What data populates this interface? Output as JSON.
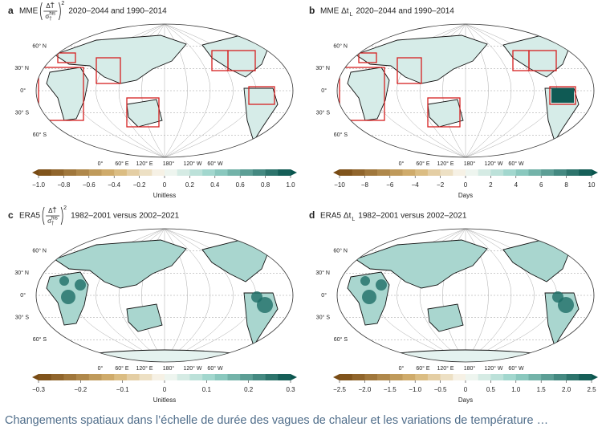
{
  "panels": [
    {
      "letter": "a",
      "title": {
        "prefix": "MME",
        "numerator": "ΔT̂",
        "denominator": "σ",
        "denominator_sup": "his",
        "denominator_sub": "T̂",
        "power": "2",
        "suffix": "2020–2044 and 1990–2014"
      },
      "colorbar_ticks": [
        "−1.0",
        "−0.8",
        "−0.6",
        "−0.4",
        "−0.2",
        "0",
        "0.2",
        "0.4",
        "0.6",
        "0.8",
        "1.0"
      ],
      "colorbar_label": "Unitless"
    },
    {
      "letter": "b",
      "title": {
        "prefix": "MME Δt",
        "subscript": "L",
        "suffix": "2020–2044 and 1990–2014"
      },
      "colorbar_ticks": [
        "−10",
        "−8",
        "−6",
        "−4",
        "−2",
        "0",
        "2",
        "4",
        "6",
        "8",
        "10"
      ],
      "colorbar_label": "Days"
    },
    {
      "letter": "c",
      "title": {
        "prefix": "ERA5",
        "numerator": "ΔT̂",
        "denominator": "σ",
        "denominator_sup": "his",
        "denominator_sub": "T̂",
        "power": "2",
        "suffix": "1982–2001 versus 2002–2021"
      },
      "colorbar_ticks": [
        "−0.3",
        "−0.2",
        "−0.1",
        "0",
        "0.1",
        "0.2",
        "0.3"
      ],
      "colorbar_label": "Unitless"
    },
    {
      "letter": "d",
      "title": {
        "prefix": "ERA5 Δt",
        "subscript": "L",
        "suffix": "1982–2001 versus 2002–2021"
      },
      "colorbar_ticks": [
        "−2.5",
        "−2.0",
        "−1.5",
        "−1.0",
        "−0.5",
        "0",
        "0.5",
        "1.0",
        "1.5",
        "2.0",
        "2.5"
      ],
      "colorbar_label": "Days"
    }
  ],
  "lat_labels": [
    "60° N",
    "30° N",
    "0°",
    "30° S",
    "60° S"
  ],
  "lon_labels": [
    "0°",
    "60° E",
    "120° E",
    "180°",
    "120° W",
    "60° W"
  ],
  "caption": "Changements spatiaux dans l’échelle de durée des vagues de chaleur et les variations de température …"
}
